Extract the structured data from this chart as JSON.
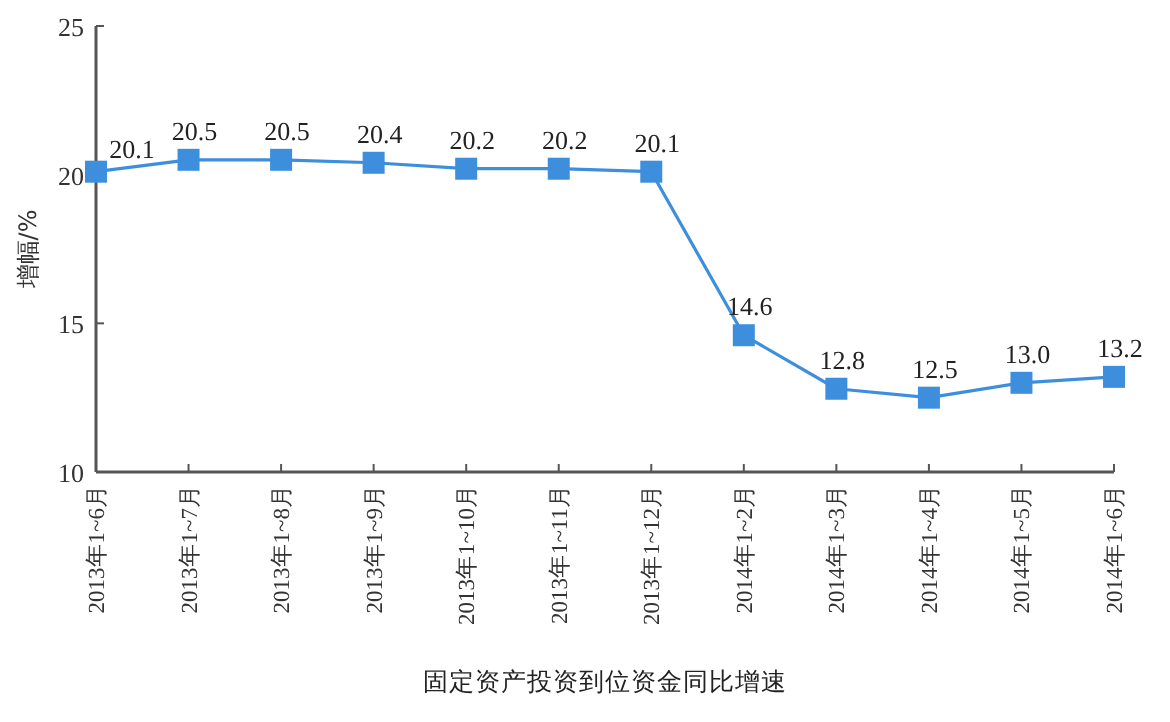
{
  "chart_data": {
    "type": "line",
    "xlabel": "固定资产投资到位资金同比增速",
    "ylabel": "增幅/%",
    "categories": [
      "2013年1~6月",
      "2013年1~7月",
      "2013年1~8月",
      "2013年1~9月",
      "2013年1~10月",
      "2013年1~11月",
      "2013年1~12月",
      "2014年1~2月",
      "2014年1~3月",
      "2014年1~4月",
      "2014年1~5月",
      "2014年1~6月"
    ],
    "series": [
      {
        "color": "#3d8fde",
        "values": [
          20.1,
          20.5,
          20.5,
          20.4,
          20.2,
          20.2,
          20.1,
          14.6,
          12.8,
          12.5,
          13.0,
          13.2
        ],
        "value_labels": [
          "20.1",
          "20.5",
          "20.5",
          "20.4",
          "20.2",
          "20.2",
          "20.1",
          "14.6",
          "12.8",
          "12.5",
          "13.0",
          "13.2"
        ]
      }
    ],
    "ylim": [
      10,
      25
    ],
    "yticks": [
      10,
      15,
      20,
      25
    ],
    "marker": "square"
  }
}
